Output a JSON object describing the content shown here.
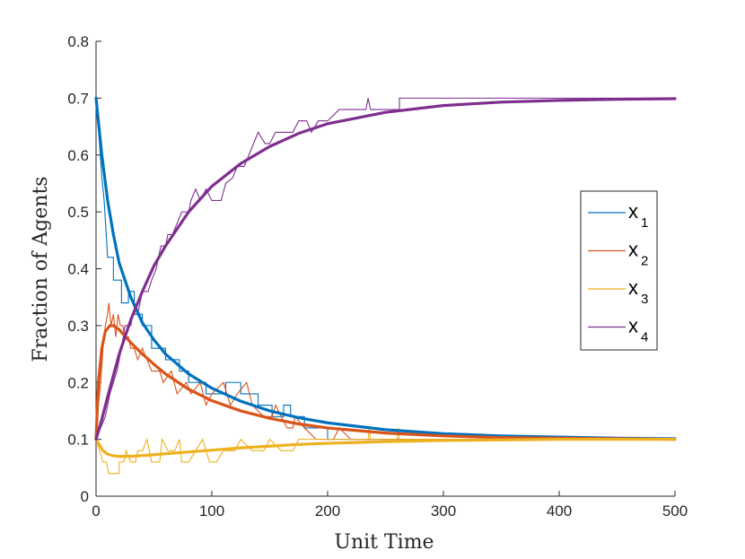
{
  "chart_data": {
    "type": "line",
    "title": "",
    "xlabel": "Unit Time",
    "ylabel": "Fraction of Agents",
    "xlim": [
      0,
      500
    ],
    "ylim": [
      0,
      0.8
    ],
    "xticks": [
      0,
      100,
      200,
      300,
      400,
      500
    ],
    "yticks": [
      0,
      0.1,
      0.2,
      0.3,
      0.4,
      0.5,
      0.6,
      0.7,
      0.8
    ],
    "grid": false,
    "legend_position": "right",
    "series": [
      {
        "name": "x",
        "subscript": "1",
        "color": "#0072BD",
        "smooth": [
          [
            0,
            0.7
          ],
          [
            2,
            0.66
          ],
          [
            5,
            0.6
          ],
          [
            10,
            0.52
          ],
          [
            15,
            0.46
          ],
          [
            20,
            0.41
          ],
          [
            30,
            0.35
          ],
          [
            40,
            0.305
          ],
          [
            50,
            0.275
          ],
          [
            60,
            0.25
          ],
          [
            80,
            0.215
          ],
          [
            100,
            0.19
          ],
          [
            125,
            0.167
          ],
          [
            150,
            0.15
          ],
          [
            175,
            0.138
          ],
          [
            200,
            0.129
          ],
          [
            250,
            0.117
          ],
          [
            300,
            0.11
          ],
          [
            350,
            0.106
          ],
          [
            400,
            0.104
          ],
          [
            450,
            0.102
          ],
          [
            500,
            0.101
          ]
        ],
        "noisy": [
          [
            0,
            0.7
          ],
          [
            3,
            0.62
          ],
          [
            5,
            0.56
          ],
          [
            7,
            0.52
          ],
          [
            10,
            0.42
          ],
          [
            15,
            0.42
          ],
          [
            15,
            0.38
          ],
          [
            22,
            0.38
          ],
          [
            22,
            0.34
          ],
          [
            28,
            0.34
          ],
          [
            28,
            0.36
          ],
          [
            33,
            0.36
          ],
          [
            33,
            0.32
          ],
          [
            40,
            0.32
          ],
          [
            40,
            0.3
          ],
          [
            48,
            0.3
          ],
          [
            48,
            0.26
          ],
          [
            60,
            0.26
          ],
          [
            60,
            0.24
          ],
          [
            72,
            0.24
          ],
          [
            72,
            0.22
          ],
          [
            80,
            0.22
          ],
          [
            80,
            0.2
          ],
          [
            95,
            0.2
          ],
          [
            95,
            0.18
          ],
          [
            112,
            0.18
          ],
          [
            112,
            0.2
          ],
          [
            125,
            0.2
          ],
          [
            125,
            0.18
          ],
          [
            140,
            0.18
          ],
          [
            140,
            0.16
          ],
          [
            152,
            0.16
          ],
          [
            152,
            0.14
          ],
          [
            162,
            0.14
          ],
          [
            162,
            0.16
          ],
          [
            168,
            0.16
          ],
          [
            168,
            0.14
          ],
          [
            180,
            0.14
          ],
          [
            180,
            0.12
          ],
          [
            200,
            0.12
          ],
          [
            200,
            0.1
          ],
          [
            500,
            0.1
          ]
        ]
      },
      {
        "name": "x",
        "subscript": "2",
        "color": "#D95319",
        "smooth": [
          [
            0,
            0.1
          ],
          [
            2,
            0.2
          ],
          [
            5,
            0.26
          ],
          [
            8,
            0.29
          ],
          [
            12,
            0.3
          ],
          [
            15,
            0.3
          ],
          [
            20,
            0.293
          ],
          [
            30,
            0.27
          ],
          [
            40,
            0.25
          ],
          [
            50,
            0.232
          ],
          [
            60,
            0.215
          ],
          [
            80,
            0.188
          ],
          [
            100,
            0.168
          ],
          [
            125,
            0.15
          ],
          [
            150,
            0.137
          ],
          [
            175,
            0.127
          ],
          [
            200,
            0.12
          ],
          [
            250,
            0.111
          ],
          [
            300,
            0.106
          ],
          [
            350,
            0.103
          ],
          [
            400,
            0.102
          ],
          [
            500,
            0.1
          ]
        ],
        "noisy": [
          [
            0,
            0.1
          ],
          [
            2,
            0.16
          ],
          [
            4,
            0.2
          ],
          [
            6,
            0.26
          ],
          [
            8,
            0.3
          ],
          [
            10,
            0.32
          ],
          [
            11,
            0.34
          ],
          [
            13,
            0.3
          ],
          [
            15,
            0.32
          ],
          [
            17,
            0.28
          ],
          [
            19,
            0.32
          ],
          [
            21,
            0.3
          ],
          [
            23,
            0.3
          ],
          [
            25,
            0.28
          ],
          [
            28,
            0.28
          ],
          [
            30,
            0.26
          ],
          [
            33,
            0.26
          ],
          [
            36,
            0.24
          ],
          [
            40,
            0.26
          ],
          [
            44,
            0.24
          ],
          [
            48,
            0.22
          ],
          [
            55,
            0.22
          ],
          [
            58,
            0.2
          ],
          [
            65,
            0.22
          ],
          [
            70,
            0.18
          ],
          [
            78,
            0.2
          ],
          [
            82,
            0.18
          ],
          [
            90,
            0.2
          ],
          [
            95,
            0.16
          ],
          [
            100,
            0.18
          ],
          [
            110,
            0.2
          ],
          [
            116,
            0.16
          ],
          [
            122,
            0.18
          ],
          [
            130,
            0.2
          ],
          [
            135,
            0.16
          ],
          [
            145,
            0.14
          ],
          [
            152,
            0.14
          ],
          [
            155,
            0.16
          ],
          [
            165,
            0.12
          ],
          [
            170,
            0.12
          ],
          [
            172,
            0.14
          ],
          [
            180,
            0.12
          ],
          [
            190,
            0.1
          ],
          [
            205,
            0.1
          ],
          [
            210,
            0.12
          ],
          [
            220,
            0.1
          ],
          [
            500,
            0.1
          ]
        ]
      },
      {
        "name": "x",
        "subscript": "3",
        "color": "#EDB120",
        "smooth": [
          [
            0,
            0.1
          ],
          [
            3,
            0.09
          ],
          [
            6,
            0.08
          ],
          [
            10,
            0.074
          ],
          [
            15,
            0.071
          ],
          [
            20,
            0.07
          ],
          [
            30,
            0.07
          ],
          [
            50,
            0.073
          ],
          [
            75,
            0.077
          ],
          [
            100,
            0.081
          ],
          [
            125,
            0.085
          ],
          [
            150,
            0.088
          ],
          [
            175,
            0.091
          ],
          [
            200,
            0.093
          ],
          [
            250,
            0.096
          ],
          [
            300,
            0.098
          ],
          [
            350,
            0.099
          ],
          [
            400,
            0.1
          ],
          [
            500,
            0.1
          ]
        ],
        "noisy": [
          [
            0,
            0.1
          ],
          [
            3,
            0.08
          ],
          [
            6,
            0.06
          ],
          [
            9,
            0.06
          ],
          [
            11,
            0.04
          ],
          [
            20,
            0.04
          ],
          [
            20,
            0.06
          ],
          [
            24,
            0.06
          ],
          [
            26,
            0.08
          ],
          [
            30,
            0.06
          ],
          [
            34,
            0.06
          ],
          [
            36,
            0.08
          ],
          [
            40,
            0.08
          ],
          [
            44,
            0.1
          ],
          [
            48,
            0.06
          ],
          [
            55,
            0.06
          ],
          [
            57,
            0.1
          ],
          [
            62,
            0.08
          ],
          [
            68,
            0.08
          ],
          [
            72,
            0.1
          ],
          [
            74,
            0.06
          ],
          [
            80,
            0.06
          ],
          [
            86,
            0.08
          ],
          [
            92,
            0.1
          ],
          [
            98,
            0.06
          ],
          [
            104,
            0.06
          ],
          [
            110,
            0.08
          ],
          [
            120,
            0.08
          ],
          [
            125,
            0.1
          ],
          [
            135,
            0.08
          ],
          [
            145,
            0.08
          ],
          [
            150,
            0.1
          ],
          [
            160,
            0.08
          ],
          [
            170,
            0.08
          ],
          [
            175,
            0.1
          ],
          [
            235,
            0.1
          ],
          [
            236,
            0.12
          ],
          [
            237,
            0.1
          ],
          [
            260,
            0.1
          ],
          [
            261,
            0.12
          ],
          [
            262,
            0.1
          ],
          [
            500,
            0.1
          ]
        ]
      },
      {
        "name": "x",
        "subscript": "4",
        "color": "#7E2F8E",
        "smooth": [
          [
            0,
            0.1
          ],
          [
            5,
            0.135
          ],
          [
            10,
            0.175
          ],
          [
            20,
            0.25
          ],
          [
            30,
            0.31
          ],
          [
            40,
            0.36
          ],
          [
            50,
            0.405
          ],
          [
            60,
            0.44
          ],
          [
            70,
            0.47
          ],
          [
            80,
            0.5
          ],
          [
            100,
            0.545
          ],
          [
            125,
            0.585
          ],
          [
            150,
            0.615
          ],
          [
            175,
            0.638
          ],
          [
            200,
            0.655
          ],
          [
            250,
            0.675
          ],
          [
            300,
            0.687
          ],
          [
            350,
            0.693
          ],
          [
            400,
            0.696
          ],
          [
            450,
            0.698
          ],
          [
            500,
            0.699
          ]
        ],
        "noisy": [
          [
            0,
            0.1
          ],
          [
            8,
            0.14
          ],
          [
            12,
            0.18
          ],
          [
            18,
            0.22
          ],
          [
            22,
            0.26
          ],
          [
            25,
            0.3
          ],
          [
            30,
            0.3
          ],
          [
            32,
            0.32
          ],
          [
            36,
            0.32
          ],
          [
            40,
            0.36
          ],
          [
            45,
            0.36
          ],
          [
            48,
            0.38
          ],
          [
            52,
            0.4
          ],
          [
            56,
            0.44
          ],
          [
            60,
            0.44
          ],
          [
            62,
            0.46
          ],
          [
            66,
            0.46
          ],
          [
            70,
            0.48
          ],
          [
            74,
            0.5
          ],
          [
            80,
            0.5
          ],
          [
            82,
            0.52
          ],
          [
            86,
            0.54
          ],
          [
            90,
            0.52
          ],
          [
            95,
            0.54
          ],
          [
            100,
            0.52
          ],
          [
            108,
            0.52
          ],
          [
            112,
            0.55
          ],
          [
            118,
            0.56
          ],
          [
            122,
            0.58
          ],
          [
            128,
            0.58
          ],
          [
            132,
            0.6
          ],
          [
            136,
            0.62
          ],
          [
            140,
            0.64
          ],
          [
            146,
            0.62
          ],
          [
            150,
            0.62
          ],
          [
            155,
            0.64
          ],
          [
            170,
            0.64
          ],
          [
            175,
            0.66
          ],
          [
            182,
            0.66
          ],
          [
            186,
            0.64
          ],
          [
            192,
            0.66
          ],
          [
            200,
            0.66
          ],
          [
            210,
            0.68
          ],
          [
            233,
            0.68
          ],
          [
            235,
            0.7
          ],
          [
            237,
            0.68
          ],
          [
            262,
            0.68
          ],
          [
            262,
            0.7
          ],
          [
            500,
            0.7
          ]
        ]
      }
    ]
  }
}
